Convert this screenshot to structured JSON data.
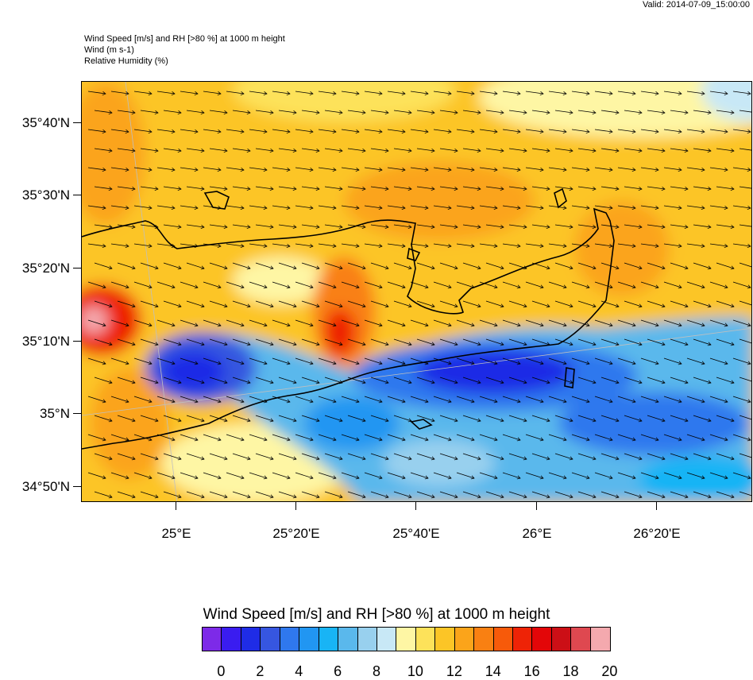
{
  "valid_time": "Valid: 2014-07-09_15:00:00",
  "titles": {
    "line1": "Wind Speed [m/s] and RH [>80 %] at 1000 m height",
    "line2": "Wind   (m s-1)",
    "line3": "Relative Humidity   (%)"
  },
  "y_labels": [
    "35°40'N",
    "35°30'N",
    "35°20'N",
    "35°10'N",
    "35°N",
    "34°50'N"
  ],
  "x_labels": [
    "25°E",
    "25°20'E",
    "25°40'E",
    "26°E",
    "26°20'E"
  ],
  "legend": {
    "title": "Wind Speed [m/s] and RH [>80 %] at 1000 m height",
    "labels": [
      "0",
      "2",
      "4",
      "6",
      "8",
      "10",
      "12",
      "14",
      "16",
      "18",
      "20"
    ],
    "colors": [
      "#7d2ae8",
      "#3a1cf0",
      "#1f2ce6",
      "#3656e0",
      "#2f78ee",
      "#2196f2",
      "#18b4f5",
      "#5ab8ec",
      "#98d0ee",
      "#c8e8f6",
      "#fef6a4",
      "#fde25a",
      "#fcc526",
      "#fba41a",
      "#f98012",
      "#f75a0a",
      "#ee2306",
      "#e30608",
      "#cc0f16",
      "#df4850",
      "#f4a9ae"
    ]
  },
  "chart_data": {
    "type": "map",
    "fields": [
      "wind speed (filled)",
      "wind vectors (arrows)",
      "relative humidity"
    ],
    "lat_ticks": [
      "34°50'N",
      "35°N",
      "35°10'N",
      "35°20'N",
      "35°30'N",
      "35°40'N"
    ],
    "lon_ticks": [
      "25°E",
      "25°20'E",
      "25°40'E",
      "26°E",
      "26°20'E"
    ],
    "scale_range": [
      0,
      20
    ],
    "scale_step": 1
  }
}
